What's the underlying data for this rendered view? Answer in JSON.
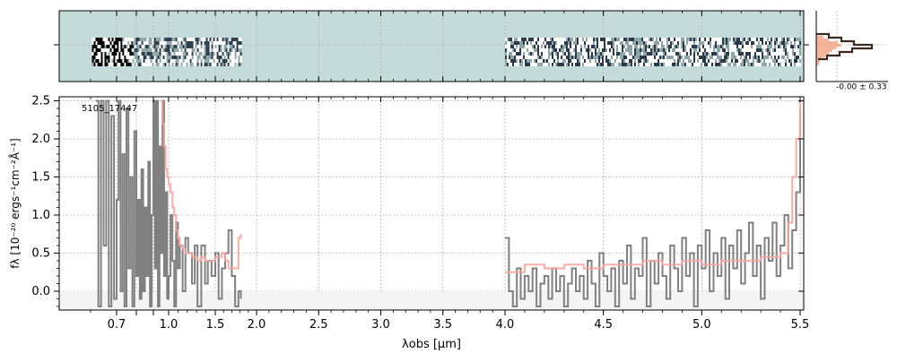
{
  "chart_data": {
    "type": "line",
    "object_label": "5105_17447",
    "xlabel": "λobs [μm]",
    "ylabel": "fλ [10⁻²⁰ ergs⁻¹cm⁻²Å⁻¹]",
    "ylim": [
      -0.25,
      2.55
    ],
    "yticks": [
      "0.0",
      "0.5",
      "1.0",
      "1.5",
      "2.0",
      "2.5"
    ],
    "xticks": [
      "0.7",
      "0.8",
      "0.9",
      "1.0",
      "1.5",
      "2.0",
      "2.5",
      "3.0",
      "3.5",
      "4.0",
      "4.5",
      "5.0",
      "5.5"
    ],
    "xtick_labels_shown": [
      "0.7",
      "1.0",
      "1.5",
      "2.0",
      "2.5",
      "3.0",
      "3.5",
      "4.0",
      "4.5",
      "5.0",
      "5.5"
    ],
    "grid": true,
    "colors": {
      "data": "#808080",
      "model": "#f4a6a0",
      "model_dark": "#d9847c",
      "twod_bg": "#c5dbd9",
      "hist_bar": "#f2a285",
      "hist_line": "#3a2a20"
    },
    "series": [
      {
        "role": "data",
        "segments": [
          {
            "x": [
              0.62,
              0.63,
              0.64,
              0.65,
              0.66,
              0.67,
              0.68,
              0.69,
              0.7,
              0.71,
              0.72,
              0.73,
              0.74,
              0.75,
              0.76,
              0.77,
              0.78,
              0.79,
              0.8,
              0.81,
              0.82,
              0.83,
              0.84,
              0.85,
              0.86,
              0.87,
              0.88,
              0.89,
              0.9,
              0.91,
              0.92,
              0.93,
              0.94,
              0.95,
              0.96,
              0.97,
              0.98,
              0.99,
              1.0,
              1.02,
              1.04,
              1.06,
              1.08,
              1.1,
              1.12,
              1.15,
              1.18,
              1.21,
              1.25,
              1.28,
              1.31,
              1.35,
              1.39,
              1.42,
              1.46,
              1.5,
              1.54,
              1.58,
              1.62,
              1.66,
              1.7,
              1.74,
              1.78,
              1.81
            ],
            "y": [
              2.5,
              -0.2,
              2.5,
              0.6,
              2.5,
              -0.2,
              2.3,
              -0.1,
              1.2,
              2.5,
              0.0,
              1.8,
              -0.2,
              2.4,
              0.3,
              1.5,
              -0.2,
              2.1,
              0.2,
              1.2,
              -0.1,
              1.6,
              0.0,
              1.1,
              0.2,
              1.7,
              -0.2,
              1.0,
              2.5,
              0.3,
              2.5,
              -0.2,
              1.9,
              0.5,
              2.5,
              0.2,
              1.3,
              -0.1,
              0.2,
              1.0,
              0.4,
              -0.2,
              0.9,
              0.3,
              0.6,
              0.0,
              0.7,
              0.5,
              0.1,
              0.6,
              -0.2,
              0.6,
              0.1,
              0.4,
              0.2,
              0.5,
              -0.1,
              0.3,
              0.5,
              0.8,
              0.2,
              -0.2,
              0.0,
              -0.1
            ]
          },
          {
            "x": [
              4.0,
              4.02,
              4.04,
              4.06,
              4.08,
              4.1,
              4.12,
              4.14,
              4.16,
              4.18,
              4.2,
              4.22,
              4.24,
              4.26,
              4.28,
              4.3,
              4.32,
              4.34,
              4.36,
              4.38,
              4.4,
              4.42,
              4.44,
              4.46,
              4.48,
              4.5,
              4.52,
              4.54,
              4.56,
              4.58,
              4.6,
              4.62,
              4.64,
              4.66,
              4.68,
              4.7,
              4.72,
              4.74,
              4.76,
              4.78,
              4.8,
              4.82,
              4.84,
              4.86,
              4.88,
              4.9,
              4.92,
              4.94,
              4.96,
              4.98,
              5.0,
              5.02,
              5.04,
              5.06,
              5.08,
              5.1,
              5.12,
              5.14,
              5.16,
              5.18,
              5.2,
              5.22,
              5.24,
              5.26,
              5.28,
              5.3,
              5.32,
              5.34,
              5.36,
              5.38,
              5.4,
              5.42,
              5.44,
              5.46,
              5.48,
              5.5
            ],
            "y": [
              0.7,
              0.0,
              -0.2,
              0.3,
              -0.1,
              0.2,
              0.0,
              0.3,
              -0.2,
              0.1,
              0.2,
              -0.1,
              0.3,
              0.0,
              0.2,
              -0.2,
              0.1,
              0.3,
              0.0,
              0.2,
              -0.1,
              0.4,
              0.1,
              -0.2,
              0.5,
              0.2,
              0.0,
              0.3,
              -0.2,
              0.4,
              0.1,
              0.6,
              -0.1,
              0.3,
              0.2,
              0.7,
              -0.2,
              0.4,
              0.1,
              0.5,
              0.2,
              -0.1,
              0.6,
              0.3,
              0.0,
              0.7,
              0.2,
              0.5,
              -0.2,
              0.6,
              0.3,
              0.8,
              0.0,
              0.5,
              0.2,
              0.7,
              -0.1,
              0.6,
              0.3,
              0.8,
              0.1,
              0.5,
              0.9,
              0.2,
              0.6,
              -0.1,
              0.7,
              0.4,
              0.9,
              0.2,
              0.6,
              1.0,
              0.3,
              0.8,
              1.3,
              2.4
            ]
          }
        ]
      },
      {
        "role": "model",
        "segments": [
          {
            "x": [
              0.95,
              0.96,
              0.97,
              0.98,
              0.99,
              1.0,
              1.02,
              1.04,
              1.06,
              1.08,
              1.1,
              1.12,
              1.15,
              1.18,
              1.21,
              1.25,
              1.28,
              1.31,
              1.35,
              1.39,
              1.42,
              1.46,
              1.5,
              1.54,
              1.58,
              1.62,
              1.66,
              1.7,
              1.74,
              1.78,
              1.81
            ],
            "y": [
              2.5,
              2.2,
              1.9,
              1.6,
              1.5,
              1.4,
              1.3,
              1.1,
              1.0,
              0.8,
              0.7,
              0.6,
              0.55,
              0.5,
              0.5,
              0.45,
              0.45,
              0.4,
              0.45,
              0.4,
              0.4,
              0.4,
              0.45,
              0.45,
              0.5,
              0.4,
              0.3,
              0.3,
              0.3,
              0.7,
              0.75
            ]
          },
          {
            "x": [
              4.0,
              4.1,
              4.2,
              4.3,
              4.4,
              4.5,
              4.6,
              4.7,
              4.8,
              4.9,
              5.0,
              5.1,
              5.2,
              5.3,
              5.4,
              5.44,
              5.46,
              5.48,
              5.5
            ],
            "y": [
              0.25,
              0.35,
              0.3,
              0.35,
              0.3,
              0.35,
              0.35,
              0.4,
              0.35,
              0.4,
              0.35,
              0.4,
              0.4,
              0.45,
              0.5,
              0.9,
              1.5,
              2.0,
              2.5
            ]
          }
        ]
      }
    ],
    "twod_panel": {
      "colormap": "bone_r",
      "background": "#c5dbd9"
    },
    "histogram": {
      "annotation": "-0.00 ± 0.33"
    }
  }
}
